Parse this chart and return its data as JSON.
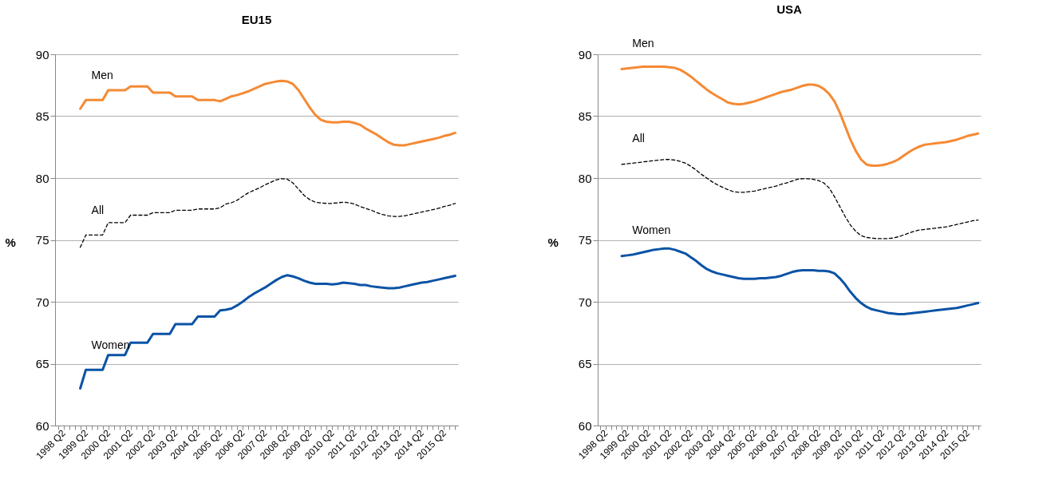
{
  "chart_data": [
    {
      "type": "line",
      "title": "EU15",
      "ylabel": "%",
      "ylim": [
        60,
        90
      ],
      "yticks": [
        60,
        65,
        70,
        75,
        80,
        85,
        90
      ],
      "grid": "y",
      "legend": false,
      "categories": [
        null,
        "1998 Q2",
        null,
        null,
        null,
        "1999 Q2",
        null,
        null,
        null,
        "2000 Q2",
        null,
        null,
        null,
        "2001 Q2",
        null,
        null,
        null,
        "2002 Q2",
        null,
        null,
        null,
        "2003 Q2",
        null,
        null,
        null,
        "2004 Q2",
        null,
        null,
        null,
        "2005 Q2",
        null,
        null,
        null,
        "2006 Q2",
        null,
        null,
        null,
        "2007 Q2",
        null,
        null,
        null,
        "2008 Q2",
        null,
        null,
        null,
        "2009 Q2",
        null,
        null,
        null,
        "2010 Q2",
        null,
        null,
        null,
        "2011 Q2",
        null,
        null,
        null,
        "2012 Q2",
        null,
        null,
        null,
        "2013 Q2",
        null,
        null,
        null,
        "2014 Q2",
        null,
        null,
        null,
        "2015 Q2",
        null,
        null
      ],
      "series": [
        {
          "name": "Men",
          "color": "#f58a34",
          "line_style": "solid",
          "values": [
            null,
            null,
            null,
            null,
            85.6,
            86.3,
            86.3,
            86.3,
            86.3,
            87.1,
            87.1,
            87.1,
            87.1,
            87.4,
            87.4,
            87.4,
            87.4,
            86.9,
            86.9,
            86.9,
            86.9,
            86.6,
            86.6,
            86.6,
            86.6,
            86.3,
            86.3,
            86.3,
            86.3,
            86.2,
            86.4,
            86.6,
            86.7,
            86.85,
            87.0,
            87.2,
            87.4,
            87.6,
            87.7,
            87.8,
            87.85,
            87.8,
            87.6,
            87.1,
            86.4,
            85.7,
            85.1,
            84.7,
            84.55,
            84.5,
            84.5,
            84.55,
            84.55,
            84.45,
            84.3,
            84.0,
            83.75,
            83.5,
            83.2,
            82.9,
            82.7,
            82.65,
            82.65,
            82.75,
            82.85,
            82.95,
            83.05,
            83.15,
            83.25,
            83.4,
            83.5,
            83.65
          ]
        },
        {
          "name": "All",
          "color": "#000000",
          "line_style": "dashed",
          "values": [
            null,
            null,
            null,
            null,
            74.4,
            75.4,
            75.4,
            75.4,
            75.4,
            76.4,
            76.4,
            76.4,
            76.4,
            77.0,
            77.0,
            77.0,
            77.0,
            77.2,
            77.2,
            77.2,
            77.2,
            77.4,
            77.4,
            77.4,
            77.4,
            77.5,
            77.5,
            77.5,
            77.5,
            77.6,
            77.9,
            78.0,
            78.2,
            78.5,
            78.8,
            79.0,
            79.2,
            79.45,
            79.65,
            79.85,
            79.95,
            79.9,
            79.6,
            79.1,
            78.6,
            78.25,
            78.05,
            77.98,
            77.95,
            77.95,
            78.0,
            78.05,
            78.0,
            77.9,
            77.7,
            77.55,
            77.4,
            77.2,
            77.05,
            76.95,
            76.9,
            76.9,
            76.95,
            77.05,
            77.15,
            77.25,
            77.35,
            77.45,
            77.55,
            77.7,
            77.8,
            77.95
          ]
        },
        {
          "name": "Women",
          "color": "#0a53a5",
          "line_style": "solid",
          "values": [
            null,
            null,
            null,
            null,
            63.0,
            64.5,
            64.5,
            64.5,
            64.5,
            65.7,
            65.7,
            65.7,
            65.7,
            66.7,
            66.7,
            66.7,
            66.7,
            67.4,
            67.4,
            67.4,
            67.4,
            68.2,
            68.2,
            68.2,
            68.2,
            68.8,
            68.8,
            68.8,
            68.8,
            69.3,
            69.35,
            69.45,
            69.7,
            70.0,
            70.35,
            70.65,
            70.9,
            71.15,
            71.45,
            71.75,
            72.0,
            72.15,
            72.05,
            71.9,
            71.7,
            71.55,
            71.45,
            71.45,
            71.45,
            71.4,
            71.45,
            71.55,
            71.5,
            71.45,
            71.35,
            71.35,
            71.25,
            71.2,
            71.15,
            71.1,
            71.1,
            71.15,
            71.25,
            71.35,
            71.45,
            71.55,
            71.6,
            71.7,
            71.8,
            71.9,
            72.0,
            72.1
          ]
        }
      ]
    },
    {
      "type": "line",
      "title": "USA",
      "ylabel": "%",
      "ylim": [
        60,
        90
      ],
      "yticks": [
        60,
        65,
        70,
        75,
        80,
        85,
        90
      ],
      "grid": "y",
      "legend": false,
      "categories": [
        null,
        "1998 Q2",
        null,
        null,
        null,
        "1999 Q2",
        null,
        null,
        null,
        "2000 Q2",
        null,
        null,
        null,
        "2001 Q2",
        null,
        null,
        null,
        "2002 Q2",
        null,
        null,
        null,
        "2003 Q2",
        null,
        null,
        null,
        "2004 Q2",
        null,
        null,
        null,
        "2005 Q2",
        null,
        null,
        null,
        "2006 Q2",
        null,
        null,
        null,
        "2007 Q2",
        null,
        null,
        null,
        "2008 Q2",
        null,
        null,
        null,
        "2009 Q2",
        null,
        null,
        null,
        "2010 Q2",
        null,
        null,
        null,
        "2011 Q2",
        null,
        null,
        null,
        "2012 Q2",
        null,
        null,
        null,
        "2013 Q2",
        null,
        null,
        null,
        "2014 Q2",
        null,
        null,
        null,
        "2015 Q2",
        null,
        null
      ],
      "series": [
        {
          "name": "Men",
          "color": "#f58a34",
          "line_style": "solid",
          "values": [
            null,
            null,
            null,
            null,
            88.8,
            88.85,
            88.9,
            88.95,
            89.0,
            89.0,
            89.0,
            89.0,
            89.0,
            88.95,
            88.9,
            88.75,
            88.5,
            88.2,
            87.85,
            87.5,
            87.15,
            86.85,
            86.6,
            86.35,
            86.1,
            86.0,
            85.95,
            86.0,
            86.1,
            86.2,
            86.35,
            86.5,
            86.65,
            86.8,
            86.95,
            87.05,
            87.15,
            87.3,
            87.45,
            87.55,
            87.55,
            87.45,
            87.2,
            86.8,
            86.2,
            85.3,
            84.2,
            83.1,
            82.2,
            81.5,
            81.1,
            81.0,
            81.0,
            81.05,
            81.15,
            81.3,
            81.5,
            81.8,
            82.1,
            82.35,
            82.55,
            82.7,
            82.75,
            82.8,
            82.85,
            82.9,
            83.0,
            83.1,
            83.25,
            83.4,
            83.5,
            83.6
          ]
        },
        {
          "name": "All",
          "color": "#000000",
          "line_style": "dashed",
          "values": [
            null,
            null,
            null,
            null,
            81.1,
            81.15,
            81.2,
            81.25,
            81.3,
            81.35,
            81.4,
            81.45,
            81.5,
            81.5,
            81.45,
            81.35,
            81.2,
            80.95,
            80.65,
            80.3,
            80.0,
            79.7,
            79.45,
            79.25,
            79.05,
            78.9,
            78.85,
            78.85,
            78.9,
            78.95,
            79.05,
            79.15,
            79.25,
            79.35,
            79.5,
            79.6,
            79.75,
            79.9,
            79.95,
            79.95,
            79.9,
            79.8,
            79.6,
            79.2,
            78.5,
            77.7,
            76.9,
            76.2,
            75.7,
            75.35,
            75.2,
            75.15,
            75.1,
            75.1,
            75.1,
            75.15,
            75.25,
            75.4,
            75.55,
            75.7,
            75.8,
            75.85,
            75.9,
            75.95,
            76.0,
            76.05,
            76.15,
            76.25,
            76.35,
            76.45,
            76.55,
            76.6
          ]
        },
        {
          "name": "Women",
          "color": "#0a53a5",
          "line_style": "solid",
          "values": [
            null,
            null,
            null,
            null,
            73.7,
            73.75,
            73.8,
            73.9,
            74.0,
            74.1,
            74.2,
            74.25,
            74.3,
            74.3,
            74.2,
            74.05,
            73.9,
            73.6,
            73.3,
            72.95,
            72.65,
            72.45,
            72.3,
            72.2,
            72.1,
            72.0,
            71.9,
            71.85,
            71.85,
            71.85,
            71.9,
            71.9,
            71.95,
            72.0,
            72.1,
            72.25,
            72.4,
            72.5,
            72.55,
            72.55,
            72.55,
            72.5,
            72.5,
            72.45,
            72.3,
            71.9,
            71.4,
            70.8,
            70.3,
            69.9,
            69.6,
            69.4,
            69.3,
            69.2,
            69.1,
            69.05,
            69.0,
            69.0,
            69.05,
            69.1,
            69.15,
            69.2,
            69.25,
            69.3,
            69.35,
            69.4,
            69.45,
            69.5,
            69.6,
            69.7,
            69.8,
            69.9
          ]
        }
      ]
    }
  ]
}
